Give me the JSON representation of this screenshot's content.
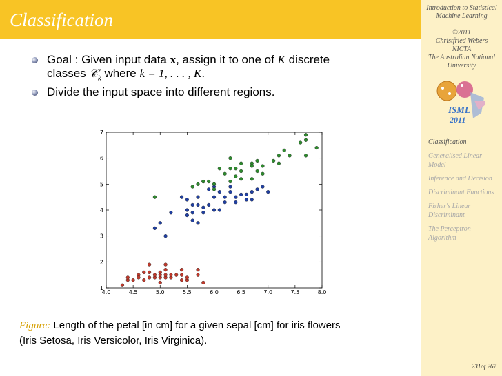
{
  "slide": {
    "title": "Classification",
    "bullets": [
      {
        "pre": "Goal : Given input data ",
        "x": "x",
        "mid": ", assign it to one of ",
        "K": "K",
        "post": " discrete",
        "line2_pre": "classes ",
        "Ck": "𝒞",
        "k_sub": "k",
        "line2_mid": " where ",
        "k_eq": "k = 1, . . . , K",
        "line2_post": "."
      },
      {
        "text": "Divide the input space into different regions."
      }
    ],
    "caption": {
      "label": "Figure:",
      "text": " Length of the petal [in cm] for a given sepal [cm] for iris flowers",
      "line2": "(Iris Setosa, Iris Versicolor, Iris Virginica)."
    }
  },
  "sidebar": {
    "title_line1": "Introduction to Statistical",
    "title_line2": "Machine Learning",
    "copyright": "©2011",
    "author": "Christfried Webers",
    "org1": "NICTA",
    "org2": "The Australian National",
    "org3": "University",
    "logo_text1": "ISML",
    "logo_text2": "2011",
    "nav": [
      {
        "label": "Classification",
        "active": true
      },
      {
        "label": "Generalised Linear Model",
        "active": false
      },
      {
        "label": "Inference and Decision",
        "active": false
      },
      {
        "label": "Discriminant Functions",
        "active": false
      },
      {
        "label": "Fisher's Linear Discriminant",
        "active": false
      },
      {
        "label": "The Perceptron Algorithm",
        "active": false
      }
    ],
    "page": "231of 267"
  },
  "chart_data": {
    "type": "scatter",
    "xlim": [
      4.0,
      8.0
    ],
    "ylim": [
      1,
      7
    ],
    "xticks": [
      "4.0",
      "4.5",
      "5.0",
      "5.5",
      "6.0",
      "6.5",
      "7.0",
      "7.5",
      "8.0"
    ],
    "yticks": [
      "1",
      "2",
      "3",
      "4",
      "5",
      "6",
      "7"
    ],
    "grid": false,
    "series": [
      {
        "color": "#c0392b",
        "points": [
          [
            4.3,
            1.1
          ],
          [
            4.4,
            1.3
          ],
          [
            4.4,
            1.4
          ],
          [
            4.5,
            1.3
          ],
          [
            4.6,
            1.5
          ],
          [
            4.6,
            1.4
          ],
          [
            4.7,
            1.3
          ],
          [
            4.7,
            1.6
          ],
          [
            4.8,
            1.4
          ],
          [
            4.8,
            1.6
          ],
          [
            4.8,
            1.9
          ],
          [
            4.9,
            1.4
          ],
          [
            4.9,
            1.5
          ],
          [
            5.0,
            1.2
          ],
          [
            5.0,
            1.4
          ],
          [
            5.0,
            1.5
          ],
          [
            5.0,
            1.6
          ],
          [
            5.1,
            1.4
          ],
          [
            5.1,
            1.5
          ],
          [
            5.1,
            1.7
          ],
          [
            5.1,
            1.9
          ],
          [
            5.2,
            1.4
          ],
          [
            5.2,
            1.5
          ],
          [
            5.3,
            1.5
          ],
          [
            5.4,
            1.3
          ],
          [
            5.4,
            1.5
          ],
          [
            5.4,
            1.7
          ],
          [
            5.5,
            1.3
          ],
          [
            5.5,
            1.4
          ],
          [
            5.7,
            1.5
          ],
          [
            5.7,
            1.7
          ],
          [
            5.8,
            1.2
          ]
        ]
      },
      {
        "color": "#1f3fa3",
        "points": [
          [
            4.9,
            3.3
          ],
          [
            5.0,
            3.5
          ],
          [
            5.1,
            3.0
          ],
          [
            5.2,
            3.9
          ],
          [
            5.4,
            4.5
          ],
          [
            5.5,
            4.0
          ],
          [
            5.5,
            3.8
          ],
          [
            5.5,
            4.4
          ],
          [
            5.6,
            4.2
          ],
          [
            5.6,
            3.9
          ],
          [
            5.6,
            3.6
          ],
          [
            5.7,
            4.5
          ],
          [
            5.7,
            4.2
          ],
          [
            5.7,
            3.5
          ],
          [
            5.8,
            4.1
          ],
          [
            5.8,
            3.9
          ],
          [
            5.9,
            4.8
          ],
          [
            5.9,
            4.2
          ],
          [
            6.0,
            4.5
          ],
          [
            6.0,
            4.0
          ],
          [
            6.0,
            4.9
          ],
          [
            6.1,
            4.7
          ],
          [
            6.1,
            4.0
          ],
          [
            6.2,
            4.5
          ],
          [
            6.2,
            4.3
          ],
          [
            6.3,
            4.9
          ],
          [
            6.3,
            4.7
          ],
          [
            6.4,
            4.5
          ],
          [
            6.4,
            4.3
          ],
          [
            6.5,
            4.6
          ],
          [
            6.6,
            4.6
          ],
          [
            6.6,
            4.4
          ],
          [
            6.7,
            4.7
          ],
          [
            6.7,
            4.4
          ],
          [
            6.8,
            4.8
          ],
          [
            6.9,
            4.9
          ],
          [
            7.0,
            4.7
          ]
        ]
      },
      {
        "color": "#2e8b2e",
        "points": [
          [
            4.9,
            4.5
          ],
          [
            5.6,
            4.9
          ],
          [
            5.7,
            5.0
          ],
          [
            5.8,
            5.1
          ],
          [
            5.8,
            5.1
          ],
          [
            5.9,
            5.1
          ],
          [
            6.0,
            5.0
          ],
          [
            6.0,
            4.8
          ],
          [
            6.1,
            5.6
          ],
          [
            6.2,
            5.4
          ],
          [
            6.3,
            6.0
          ],
          [
            6.3,
            5.6
          ],
          [
            6.3,
            5.1
          ],
          [
            6.4,
            5.3
          ],
          [
            6.4,
            5.6
          ],
          [
            6.5,
            5.8
          ],
          [
            6.5,
            5.5
          ],
          [
            6.5,
            5.2
          ],
          [
            6.7,
            5.8
          ],
          [
            6.7,
            5.7
          ],
          [
            6.7,
            5.2
          ],
          [
            6.8,
            5.9
          ],
          [
            6.8,
            5.5
          ],
          [
            6.9,
            5.4
          ],
          [
            6.9,
            5.7
          ],
          [
            7.1,
            5.9
          ],
          [
            7.2,
            6.1
          ],
          [
            7.2,
            5.8
          ],
          [
            7.3,
            6.3
          ],
          [
            7.4,
            6.1
          ],
          [
            7.6,
            6.6
          ],
          [
            7.7,
            6.7
          ],
          [
            7.7,
            6.1
          ],
          [
            7.7,
            6.9
          ],
          [
            7.9,
            6.4
          ]
        ]
      }
    ]
  }
}
